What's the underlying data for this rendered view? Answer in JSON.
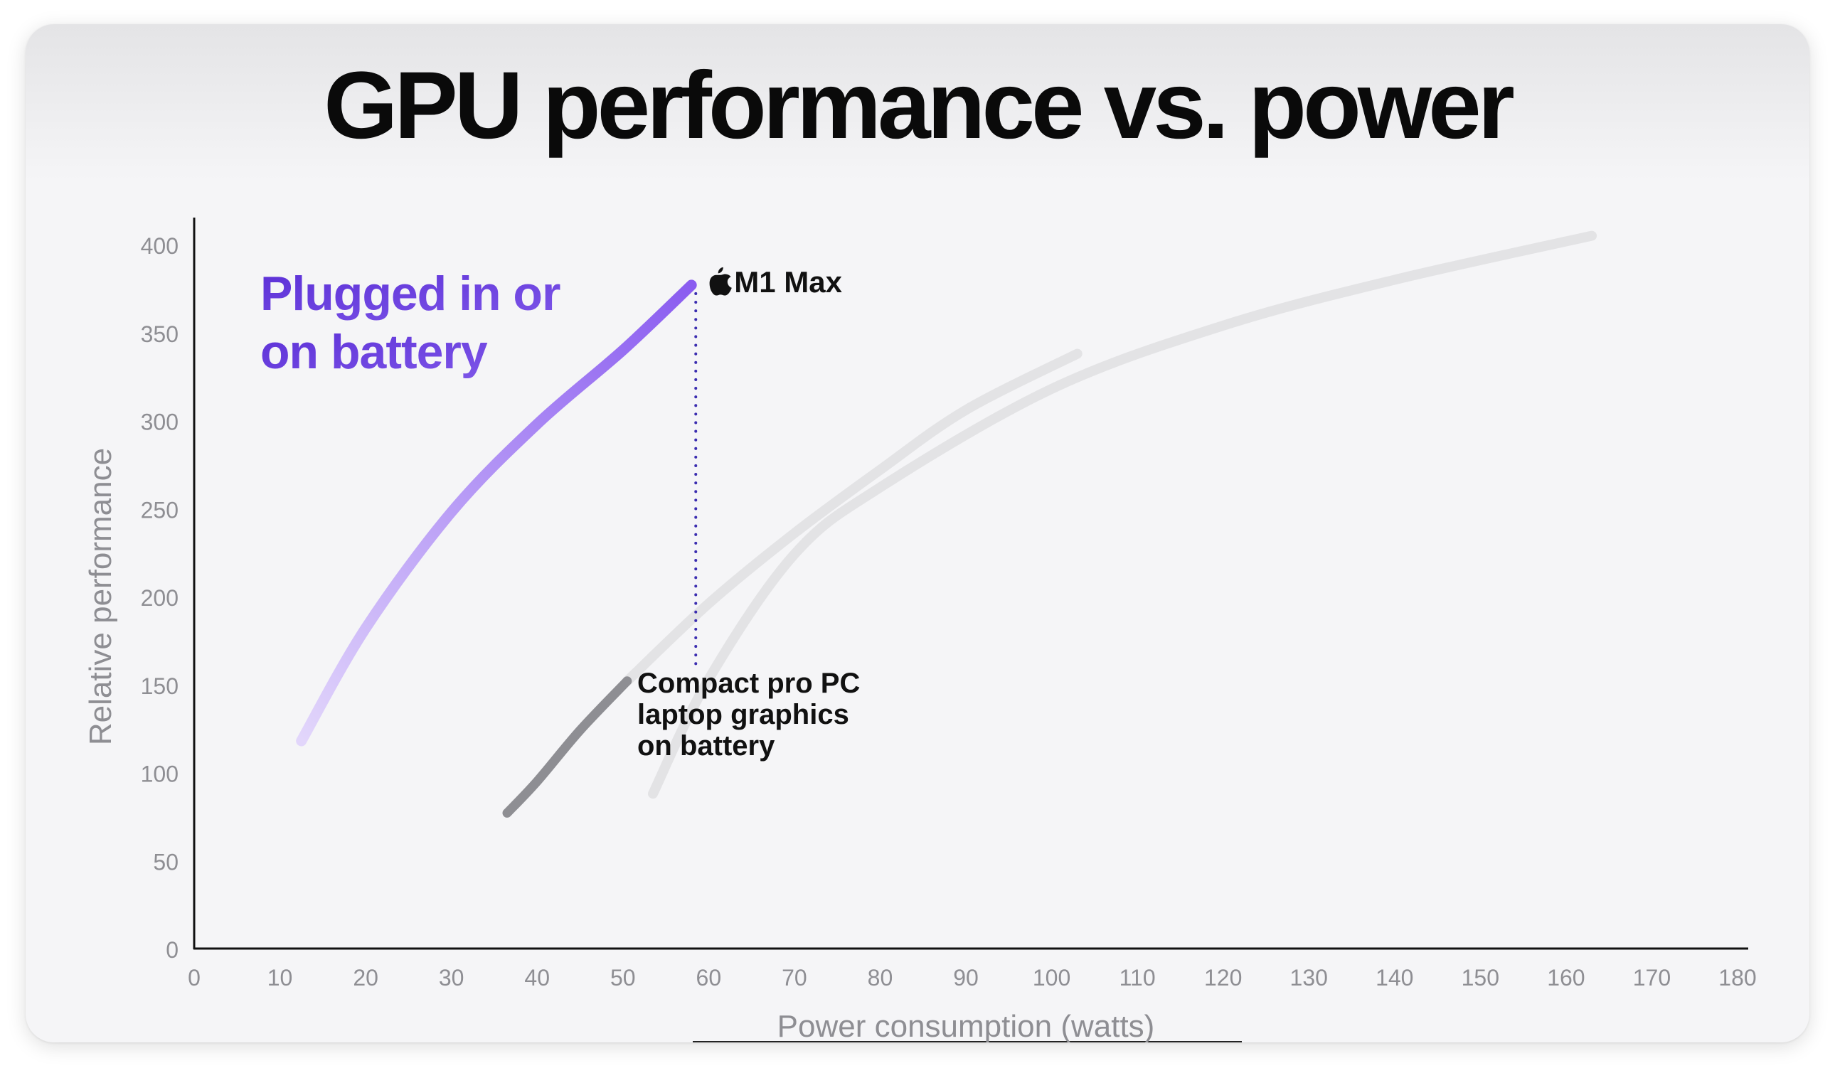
{
  "chart_data": {
    "type": "line",
    "title": "GPU performance vs. power",
    "xlabel": "Power consumption (watts)",
    "ylabel": "Relative performance",
    "xlim": [
      0,
      180
    ],
    "ylim": [
      0,
      400
    ],
    "x_ticks": [
      "0",
      "10",
      "20",
      "30",
      "40",
      "50",
      "60",
      "70",
      "80",
      "90",
      "100",
      "110",
      "120",
      "130",
      "140",
      "150",
      "160",
      "170",
      "180"
    ],
    "y_ticks": [
      "0",
      "50",
      "100",
      "150",
      "200",
      "250",
      "300",
      "350",
      "400"
    ],
    "grid": false,
    "series": [
      {
        "name": "M1 Max",
        "color": "#8a5cf0",
        "gradient_start": "#e2d6fb",
        "points": [
          [
            12.5,
            118
          ],
          [
            20,
            182
          ],
          [
            30,
            248
          ],
          [
            40,
            298
          ],
          [
            50,
            340
          ],
          [
            58,
            377
          ]
        ]
      },
      {
        "name": "Compact pro PC laptop graphics on battery",
        "color": "#8e8e93",
        "points": [
          [
            36.5,
            77
          ],
          [
            40,
            95
          ],
          [
            45,
            124
          ],
          [
            50.5,
            152
          ]
        ]
      },
      {
        "name": "",
        "color": "#e3e3e5",
        "points": [
          [
            50.5,
            152
          ],
          [
            60,
            196
          ],
          [
            70,
            236
          ],
          [
            80,
            272
          ],
          [
            90,
            306
          ],
          [
            103,
            338
          ]
        ]
      },
      {
        "name": "",
        "color": "#e3e3e5",
        "points": [
          [
            53.5,
            88
          ],
          [
            60,
            153
          ],
          [
            70,
            224
          ],
          [
            80,
            262
          ],
          [
            100,
            318
          ],
          [
            120,
            354
          ],
          [
            140,
            380
          ],
          [
            163,
            405
          ]
        ]
      }
    ],
    "annotations": {
      "purple_label_lines": [
        "Plugged in or",
        "on battery"
      ],
      "m1_label": "M1 Max",
      "m1_icon": "apple-logo-icon",
      "pc_label_lines": [
        "Compact pro PC",
        "laptop graphics",
        "on battery"
      ],
      "dotted_line": {
        "x": 58.5,
        "y_from": 377,
        "y_to": 160
      }
    }
  }
}
